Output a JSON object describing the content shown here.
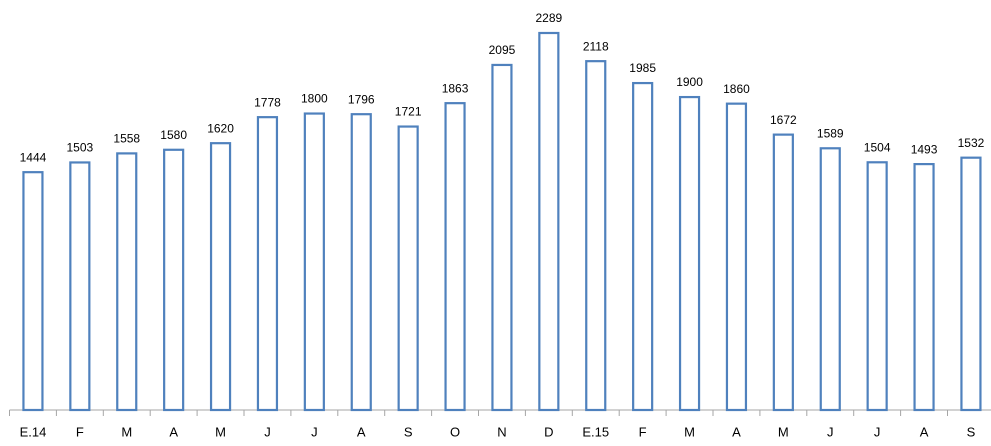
{
  "chart_data": {
    "type": "bar",
    "categories": [
      "E.14",
      "F",
      "M",
      "A",
      "M",
      "J",
      "J",
      "A",
      "S",
      "O",
      "N",
      "D",
      "E.15",
      "F",
      "M",
      "A",
      "M",
      "J",
      "J",
      "A",
      "S"
    ],
    "values": [
      1444,
      1503,
      1558,
      1580,
      1620,
      1778,
      1800,
      1796,
      1721,
      1863,
      2095,
      2289,
      2118,
      1985,
      1900,
      1860,
      1672,
      1589,
      1504,
      1493,
      1532
    ],
    "color": "#4f81bd"
  }
}
